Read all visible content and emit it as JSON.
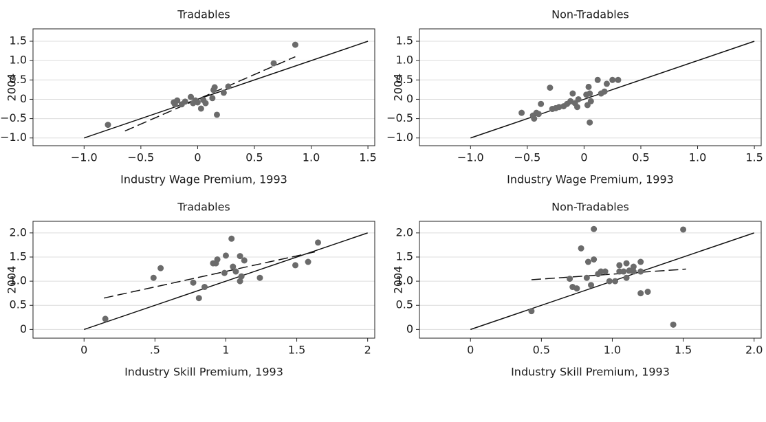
{
  "chart_data": [
    {
      "type": "scatter",
      "title": "Tradables",
      "xlabel": "Industry Wage Premium, 1993",
      "ylabel": "2004",
      "xlim": [
        -1.45,
        1.56
      ],
      "ylim": [
        -1.2,
        1.82
      ],
      "xticks": [
        {
          "value": -1,
          "label": "−1.0"
        },
        {
          "value": -0.5,
          "label": "−0.5"
        },
        0,
        0.5,
        {
          "value": 1,
          "label": "1.0"
        },
        1.5
      ],
      "yticks": [
        {
          "value": -1,
          "label": "−1.0"
        },
        {
          "value": -0.5,
          "label": "−0.5"
        },
        0,
        0.5,
        {
          "value": 1,
          "label": "1.0"
        },
        1.5
      ],
      "grid": true,
      "series": [
        {
          "color": "#6b6b6b",
          "x": [
            -0.79,
            0.86,
            0.67,
            0.27,
            0.15,
            0.14,
            0.23,
            0.13,
            0.17,
            0.03,
            0.05,
            -0.06,
            -0.02,
            0,
            -0.11,
            -0.18,
            -0.21,
            -0.14,
            -0.2,
            -0.04,
            0.07
          ],
          "values": [
            -0.66,
            1.41,
            0.93,
            0.33,
            0.31,
            0.24,
            0.17,
            0.03,
            -0.4,
            -0.24,
            -0.02,
            0.06,
            -0.03,
            -0.08,
            -0.06,
            -0.03,
            -0.08,
            -0.13,
            -0.13,
            -0.1,
            -0.1
          ]
        }
      ],
      "lines": [
        {
          "x": [
            -1,
            1.5
          ],
          "values": [
            -1,
            1.5
          ],
          "dash": false
        },
        {
          "x": [
            -0.64,
            0.86
          ],
          "values": [
            -0.82,
            1.1
          ],
          "dash": true
        }
      ]
    },
    {
      "type": "scatter",
      "title": "Non-Tradables",
      "xlabel": "Industry Wage Premium, 1993",
      "ylabel": "2004",
      "xlim": [
        -1.45,
        1.56
      ],
      "ylim": [
        -1.2,
        1.82
      ],
      "xticks": [
        {
          "value": -1,
          "label": "−1.0"
        },
        {
          "value": -0.5,
          "label": "−0.5"
        },
        0,
        0.5,
        {
          "value": 1,
          "label": "1.0"
        },
        1.5
      ],
      "yticks": [
        {
          "value": -1,
          "label": "−1.0"
        },
        {
          "value": -0.5,
          "label": "−0.5"
        },
        0,
        0.5,
        {
          "value": 1,
          "label": "1.0"
        },
        1.5
      ],
      "grid": true,
      "series": [
        {
          "color": "#6b6b6b",
          "x": [
            -0.55,
            -0.45,
            -0.44,
            -0.42,
            -0.4,
            -0.38,
            -0.3,
            -0.28,
            -0.25,
            -0.22,
            -0.18,
            -0.15,
            -0.12,
            -0.1,
            -0.08,
            -0.06,
            -0.05,
            0.02,
            0.04,
            0.05,
            0.03,
            0.05,
            0.06,
            0.12,
            0.15,
            0.18,
            0.2,
            0.25,
            0.3
          ],
          "values": [
            -0.35,
            -0.42,
            -0.5,
            -0.35,
            -0.38,
            -0.12,
            0.3,
            -0.25,
            -0.23,
            -0.2,
            -0.18,
            -0.12,
            -0.05,
            0.15,
            -0.1,
            -0.2,
            0,
            0.12,
            0.32,
            0.15,
            -0.15,
            -0.6,
            -0.05,
            0.5,
            0.15,
            0.2,
            0.4,
            0.5,
            0.5
          ]
        }
      ],
      "lines": [
        {
          "x": [
            -1,
            1.5
          ],
          "values": [
            -1,
            1.5
          ],
          "dash": false
        }
      ]
    },
    {
      "type": "scatter",
      "title": "Tradables",
      "xlabel": "Industry Skill Premium, 1993",
      "ylabel": "2004",
      "xlim": [
        -0.36,
        2.05
      ],
      "ylim": [
        -0.18,
        2.24
      ],
      "xticks": [
        0,
        {
          "value": 0.5,
          "label": ".5"
        },
        1,
        1.5,
        2
      ],
      "yticks": [
        0,
        0.5,
        {
          "value": 1,
          "label": "1.0"
        },
        1.5,
        {
          "value": 2,
          "label": "2.0"
        }
      ],
      "grid": true,
      "series": [
        {
          "color": "#6b6b6b",
          "x": [
            0.15,
            0.49,
            0.54,
            0.77,
            0.81,
            0.85,
            0.91,
            0.93,
            0.94,
            0.99,
            1.0,
            1.04,
            1.05,
            1.07,
            1.1,
            1.1,
            1.11,
            1.13,
            1.24,
            1.49,
            1.58,
            1.65
          ],
          "values": [
            0.22,
            1.07,
            1.27,
            0.97,
            0.65,
            0.88,
            1.37,
            1.37,
            1.45,
            1.17,
            1.53,
            1.88,
            1.3,
            1.2,
            1.0,
            1.52,
            1.1,
            1.43,
            1.07,
            1.33,
            1.4,
            1.8
          ]
        }
      ],
      "lines": [
        {
          "x": [
            0,
            2
          ],
          "values": [
            0,
            2
          ],
          "dash": false
        },
        {
          "x": [
            0.14,
            1.65
          ],
          "values": [
            0.65,
            1.62
          ],
          "dash": true
        }
      ]
    },
    {
      "type": "scatter",
      "title": "Non-Tradables",
      "xlabel": "Industry Skill Premium, 1993",
      "ylabel": "2004",
      "xlim": [
        -0.36,
        2.05
      ],
      "ylim": [
        -0.18,
        2.24
      ],
      "xticks": [
        0,
        0.5,
        {
          "value": 1,
          "label": "1.0"
        },
        1.5,
        {
          "value": 2,
          "label": "2.0"
        }
      ],
      "yticks": [
        0,
        0.5,
        {
          "value": 1,
          "label": "1.0"
        },
        1.5,
        {
          "value": 2,
          "label": "2.0"
        }
      ],
      "grid": true,
      "series": [
        {
          "color": "#6b6b6b",
          "x": [
            0.43,
            0.7,
            0.72,
            0.75,
            0.78,
            0.82,
            0.83,
            0.85,
            0.87,
            0.87,
            0.9,
            0.92,
            0.95,
            0.98,
            1.02,
            1.05,
            1.05,
            1.08,
            1.1,
            1.1,
            1.12,
            1.15,
            1.15,
            1.2,
            1.2,
            1.2,
            1.25,
            1.43,
            1.5
          ],
          "values": [
            0.38,
            1.05,
            0.88,
            0.85,
            1.68,
            1.07,
            1.4,
            0.92,
            2.08,
            1.45,
            1.15,
            1.2,
            1.2,
            1.0,
            1.0,
            1.33,
            1.2,
            1.2,
            1.37,
            1.07,
            1.22,
            1.3,
            1.2,
            1.4,
            1.2,
            0.75,
            0.78,
            0.1,
            2.07
          ]
        }
      ],
      "lines": [
        {
          "x": [
            0,
            2
          ],
          "values": [
            0,
            2
          ],
          "dash": false
        },
        {
          "x": [
            0.43,
            1.52
          ],
          "values": [
            1.03,
            1.25
          ],
          "dash": true
        }
      ]
    }
  ]
}
